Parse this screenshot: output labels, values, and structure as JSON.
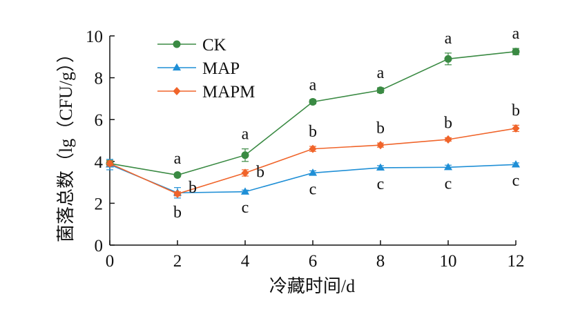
{
  "chart_data": {
    "type": "line",
    "xlabel": "冷藏时间/d",
    "ylabel": "菌落总数（lg（CFU/g））",
    "x": [
      0,
      2,
      4,
      6,
      8,
      10,
      12
    ],
    "xticks": [
      "0",
      "2",
      "4",
      "6",
      "8",
      "10",
      "12"
    ],
    "yticks": [
      "0",
      "2",
      "4",
      "6",
      "8",
      "10"
    ],
    "xlim": [
      0,
      12
    ],
    "ylim": [
      0,
      10
    ],
    "grid": false,
    "legend_position": "top-left",
    "series": [
      {
        "name": "CK",
        "color": "#3a8a43",
        "marker": "circle",
        "values": [
          3.9,
          3.35,
          4.3,
          6.85,
          7.4,
          8.9,
          9.25
        ],
        "errors": [
          0.15,
          0.08,
          0.3,
          0.1,
          0.12,
          0.28,
          0.15
        ],
        "letters": [
          "",
          "a",
          "a",
          "a",
          "a",
          "a",
          "a"
        ],
        "letter_side": "above"
      },
      {
        "name": "MAP",
        "color": "#1f8fd6",
        "marker": "triangle",
        "values": [
          3.85,
          2.5,
          2.55,
          3.45,
          3.7,
          3.72,
          3.85
        ],
        "errors": [
          0.25,
          0.25,
          0.08,
          0.1,
          0.1,
          0.1,
          0.08
        ],
        "letters": [
          "",
          "b",
          "c",
          "c",
          "c",
          "c",
          "c"
        ],
        "letter_side": "below"
      },
      {
        "name": "MAPM",
        "color": "#f0642a",
        "marker": "diamond",
        "values": [
          3.9,
          2.45,
          3.45,
          4.6,
          4.78,
          5.05,
          5.58
        ],
        "errors": [
          0.12,
          0.1,
          0.15,
          0.12,
          0.1,
          0.08,
          0.15
        ],
        "letters": [
          "",
          "b",
          "b",
          "b",
          "b",
          "b",
          "b"
        ],
        "letter_side": "above"
      }
    ]
  }
}
